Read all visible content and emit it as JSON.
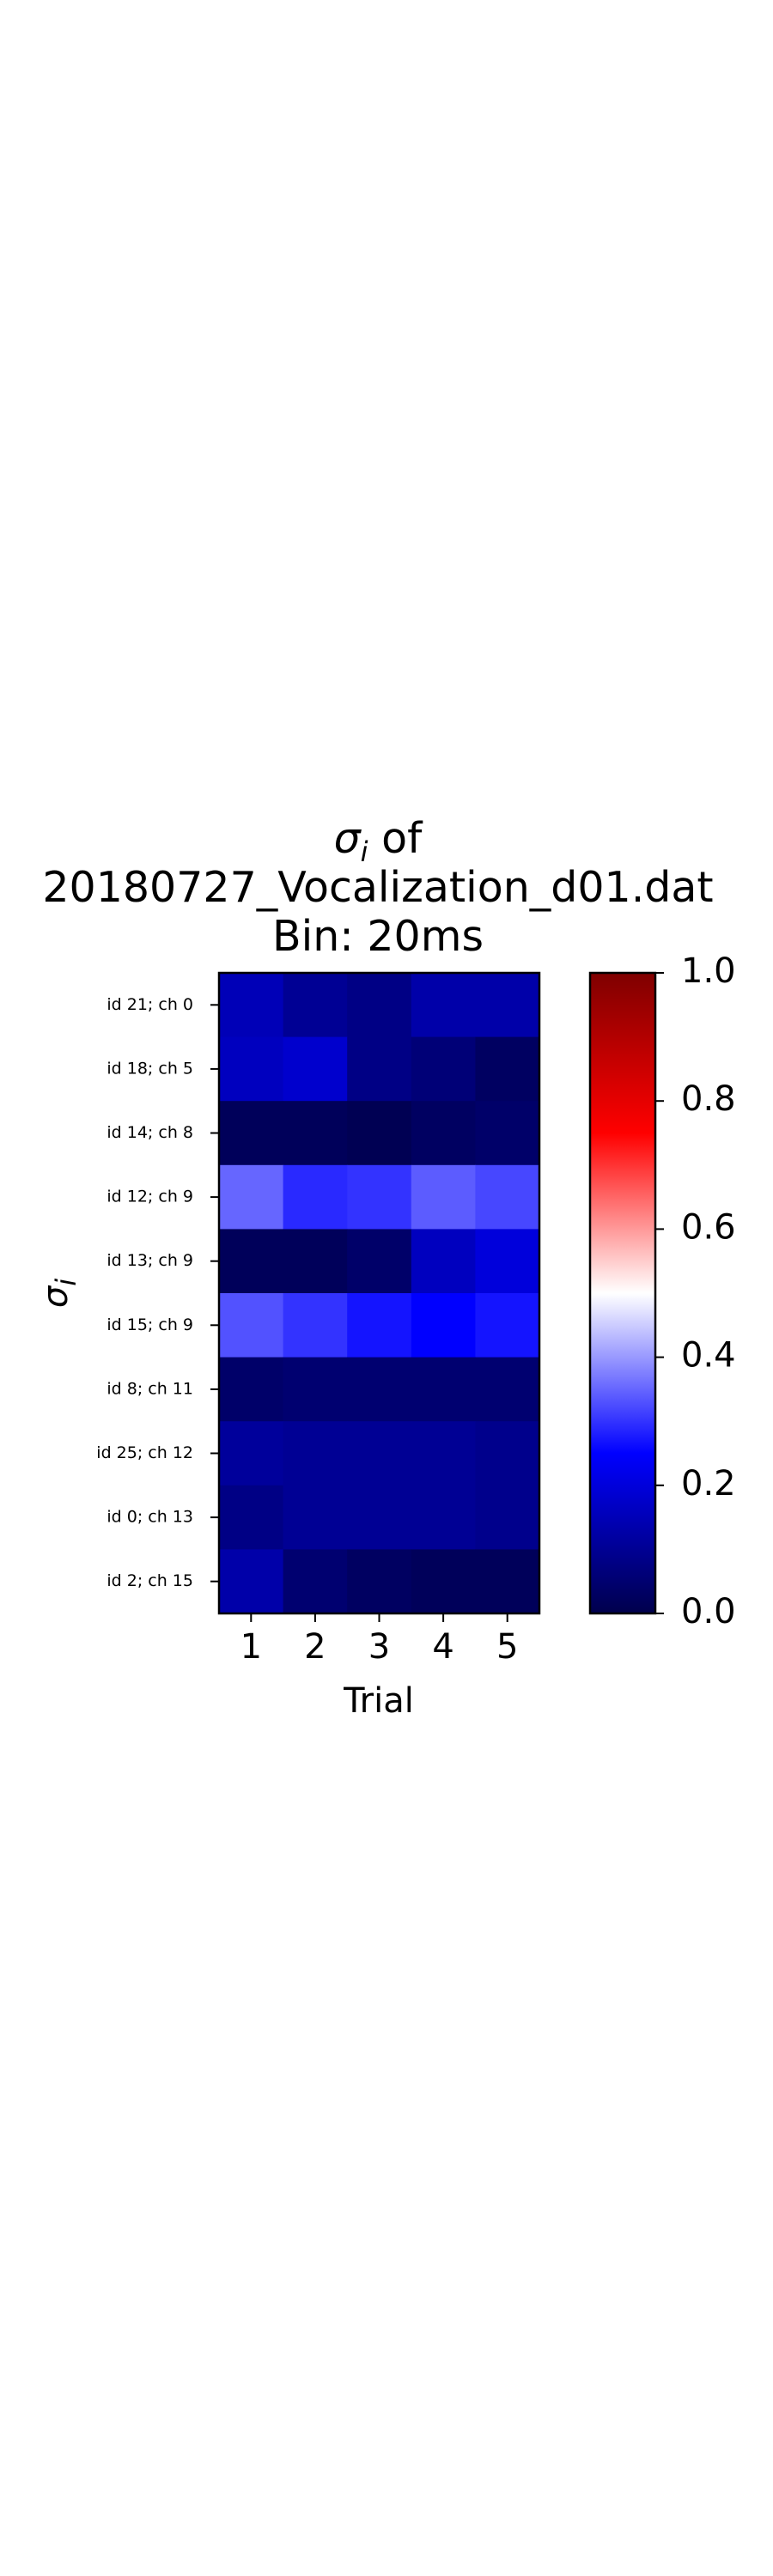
{
  "chart_data": {
    "type": "heatmap",
    "title": {
      "symbol": "σ",
      "subscript": "i",
      "suffix": " of",
      "line2": "20180727_Vocalization_d01.dat",
      "line3": "Bin: 20ms"
    },
    "xlabel": "Trial",
    "ylabel": {
      "symbol": "σ",
      "subscript": "i"
    },
    "x_categories": [
      "1",
      "2",
      "3",
      "4",
      "5"
    ],
    "y_categories": [
      "id 21; ch 0",
      "id 18; ch 5",
      "id 14; ch 8",
      "id 12; ch 9",
      "id 13; ch 9",
      "id 15; ch 9",
      "id 8; ch 11",
      "id 25; ch 12",
      "id 0; ch 13",
      "id 2; ch 15"
    ],
    "values": [
      [
        0.15,
        0.1,
        0.08,
        0.13,
        0.13
      ],
      [
        0.16,
        0.18,
        0.08,
        0.06,
        0.03
      ],
      [
        0.02,
        0.02,
        0.01,
        0.03,
        0.04
      ],
      [
        0.35,
        0.29,
        0.3,
        0.34,
        0.32
      ],
      [
        0.02,
        0.02,
        0.04,
        0.16,
        0.2
      ],
      [
        0.33,
        0.3,
        0.27,
        0.25,
        0.27
      ],
      [
        0.04,
        0.05,
        0.05,
        0.05,
        0.05
      ],
      [
        0.11,
        0.1,
        0.1,
        0.1,
        0.09
      ],
      [
        0.08,
        0.1,
        0.1,
        0.1,
        0.09
      ],
      [
        0.13,
        0.05,
        0.03,
        0.02,
        0.02
      ]
    ],
    "colorbar": {
      "colormap": "seismic",
      "range": [
        0.0,
        1.0
      ],
      "ticks": [
        "0.0",
        "0.2",
        "0.4",
        "0.6",
        "0.8",
        "1.0"
      ]
    }
  }
}
